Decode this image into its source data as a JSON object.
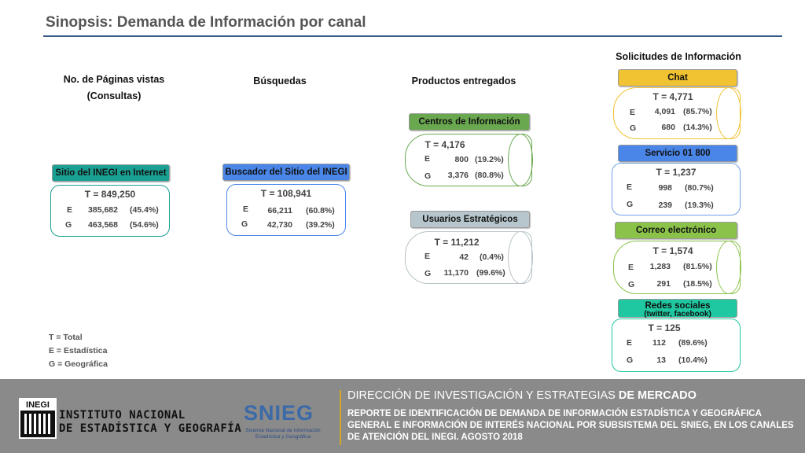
{
  "header": {
    "title": "Sinopsis: Demanda de Información por canal"
  },
  "columns": {
    "paginas": {
      "title_line1": "No. de Páginas vistas",
      "title_line2": "(Consultas)"
    },
    "busquedas": {
      "title": "Búsquedas"
    },
    "productos": {
      "title": "Productos entregados"
    },
    "solicitudes": {
      "title": "Solicitudes de Información"
    }
  },
  "cards": {
    "sitio": {
      "label": "Sitio del INEGI en Internet",
      "total": "T = 849,250",
      "e_key": "E",
      "e_val": "385,682",
      "e_pct": "(45.4%)",
      "g_key": "G",
      "g_val": "463,568",
      "g_pct": "(54.6%)",
      "color": "#1aa092"
    },
    "buscador": {
      "label": "Buscador del Sitio del INEGI",
      "total": "T = 108,941",
      "e_key": "E",
      "e_val": "66,211",
      "e_pct": "(60.8%)",
      "g_key": "G",
      "g_val": "42,730",
      "g_pct": "(39.2%)",
      "color": "#4a86e8"
    },
    "centros": {
      "label": "Centros de Información",
      "total": "T = 4,176",
      "e_key": "E",
      "e_val": "800",
      "e_pct": "(19.2%)",
      "g_key": "G",
      "g_val": "3,376",
      "g_pct": "(80.8%)",
      "color": "#6aa84f"
    },
    "usuarios": {
      "label": "Usuarios Estratégicos",
      "total": "T = 11,212",
      "e_key": "E",
      "e_val": "42",
      "e_pct": "(0.4%)",
      "g_key": "G",
      "g_val": "11,170",
      "g_pct": "(99.6%)",
      "color": "#b7c6cc"
    },
    "chat": {
      "label": "Chat",
      "total": "T = 4,771",
      "e_key": "E",
      "e_val": "4,091",
      "e_pct": "(85.7%)",
      "g_key": "G",
      "g_val": "680",
      "g_pct": "(14.3%)",
      "color": "#f1c232"
    },
    "servicio": {
      "label": "Servicio 01 800",
      "total": "T = 1,237",
      "e_key": "E",
      "e_val": "998",
      "e_pct": "(80.7%)",
      "g_key": "G",
      "g_val": "239",
      "g_pct": "(19.3%)",
      "color": "#4a86e8"
    },
    "correo": {
      "label": "Correo electrónico",
      "total": "T = 1,574",
      "e_key": "E",
      "e_val": "1,283",
      "e_pct": "(81.5%)",
      "g_key": "G",
      "g_val": "291",
      "g_pct": "(18.5%)",
      "color": "#8bc34a"
    },
    "redes": {
      "label": "Redes sociales",
      "label_sub": "(twitter, facebook)",
      "total": "T = 125",
      "e_key": "E",
      "e_val": "112",
      "e_pct": "(89.6%)",
      "g_key": "G",
      "g_val": "13",
      "g_pct": "(10.4%)",
      "color": "#1fc8a0"
    }
  },
  "legend": {
    "t": "T = Total",
    "e": "E = Estadística",
    "g": "G = Geográfica"
  },
  "footer": {
    "org_line1": "INSTITUTO NACIONAL",
    "org_line2": "DE ESTADÍSTICA Y GEOGRAFÍA",
    "logo_text": "INEGI",
    "snieg_text": "SNIEG",
    "snieg_sub": "Sistema Nacional de Información Estadística y Geográfica",
    "dept_normal": "DIRECCIÓN DE INVESTIGACIÓN Y ESTRATEGIAS ",
    "dept_bold": "DE MERCADO",
    "report": "REPORTE DE IDENTIFICACIÓN DE DEMANDA DE INFORMACIÓN ESTADÍSTICA Y GEOGRÁFICA GENERAL E INFORMACIÓN DE INTERÉS NACIONAL POR SUBSISTEMA DEL SNIEG, EN LOS CANALES DE ATENCIÓN DEL INEGI. AGOSTO 2018",
    "accent": "#d4a72c"
  }
}
